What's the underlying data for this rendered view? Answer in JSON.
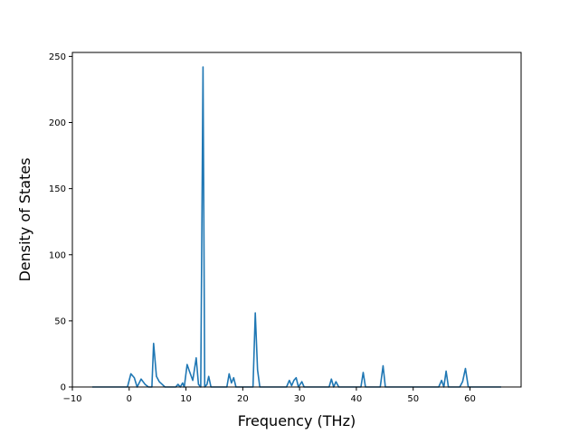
{
  "chart_data": {
    "type": "line",
    "title": "",
    "xlabel": "Frequency (THz)",
    "ylabel": "Density of States",
    "xlim": [
      -10,
      69
    ],
    "ylim": [
      0,
      253
    ],
    "grid": false,
    "legend": "none",
    "x_ticks": [
      -10,
      0,
      10,
      20,
      30,
      40,
      50,
      60
    ],
    "y_ticks": [
      0,
      50,
      100,
      150,
      200,
      250
    ],
    "series": [
      {
        "color": "#1f77b4",
        "x": [
          -6.5,
          -0.3,
          0.3,
          0.9,
          1.4,
          2.1,
          2.8,
          3.4,
          4.0,
          4.3,
          4.8,
          5.3,
          5.8,
          6.3,
          8.2,
          8.6,
          9.0,
          9.4,
          9.7,
          10.2,
          10.6,
          11.2,
          11.8,
          12.2,
          12.6,
          13.0,
          13.3,
          13.7,
          14.0,
          14.4,
          14.8,
          17.2,
          17.6,
          18.0,
          18.4,
          18.8,
          19.3,
          21.8,
          22.2,
          22.6,
          23.0,
          23.6,
          27.7,
          28.2,
          28.6,
          29.0,
          29.4,
          29.8,
          30.4,
          30.8,
          31.2,
          35.2,
          35.6,
          36.0,
          36.4,
          36.9,
          37.3,
          40.8,
          41.2,
          41.6,
          44.2,
          44.7,
          45.1,
          54.5,
          55.0,
          55.4,
          55.8,
          56.2,
          58.2,
          58.7,
          59.2,
          59.7,
          65.5
        ],
        "y": [
          0,
          0,
          10,
          7,
          0,
          6,
          2,
          0,
          0,
          33,
          8,
          4,
          2,
          0,
          0,
          2,
          0,
          3,
          0,
          17,
          12,
          5,
          22,
          2,
          0,
          242,
          0,
          2,
          8,
          0,
          0,
          0,
          10,
          3,
          7,
          0,
          0,
          0,
          56,
          13,
          0,
          0,
          0,
          5,
          1,
          5,
          7,
          0,
          4,
          0,
          0,
          0,
          6,
          0,
          4,
          0,
          0,
          0,
          11,
          0,
          0,
          16,
          0,
          0,
          5,
          0,
          12,
          0,
          0,
          4,
          14,
          0,
          0
        ]
      }
    ]
  }
}
